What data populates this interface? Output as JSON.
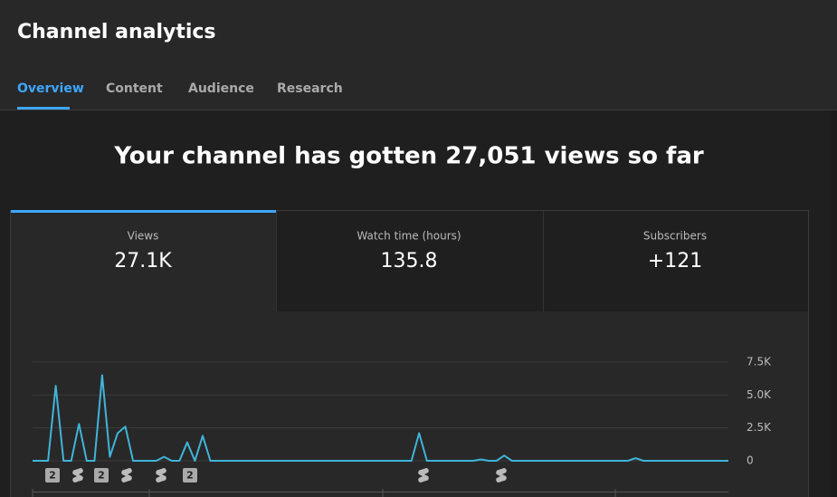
{
  "header": {
    "title": "Channel analytics",
    "tabs": [
      "Overview",
      "Content",
      "Audience",
      "Research"
    ]
  },
  "headline": "Your channel has gotten 27,051 views so far",
  "metrics": [
    {
      "label": "Views",
      "value": "27.1K"
    },
    {
      "label": "Watch time (hours)",
      "value": "135.8"
    },
    {
      "label": "Subscribers",
      "value": "+121"
    }
  ],
  "chart_data": {
    "type": "line",
    "color": "#41b4d9",
    "values": [
      0,
      0,
      0,
      5700,
      0,
      0,
      2800,
      0,
      0,
      6500,
      300,
      2100,
      2600,
      0,
      0,
      0,
      0,
      300,
      0,
      0,
      1400,
      0,
      1900,
      0,
      0,
      0,
      0,
      0,
      0,
      0,
      0,
      0,
      0,
      0,
      0,
      0,
      0,
      0,
      0,
      0,
      0,
      0,
      0,
      0,
      0,
      0,
      0,
      0,
      0,
      0,
      2100,
      0,
      0,
      0,
      0,
      0,
      0,
      0,
      100,
      0,
      0,
      400,
      0,
      0,
      0,
      0,
      0,
      0,
      0,
      0,
      0,
      0,
      0,
      0,
      0,
      0,
      0,
      0,
      200,
      0,
      0,
      0,
      0,
      0,
      0,
      0,
      0,
      0,
      0,
      0,
      0
    ],
    "ylim": [
      0,
      7500
    ],
    "yticks": [
      0,
      {
        "value": 2500,
        "label": "2.5K"
      },
      {
        "value": 5000,
        "label": "5.0K"
      },
      {
        "value": 7500,
        "label": "7.5K"
      }
    ],
    "grid": true,
    "marker_labels": [
      "2",
      "2",
      "2"
    ]
  }
}
